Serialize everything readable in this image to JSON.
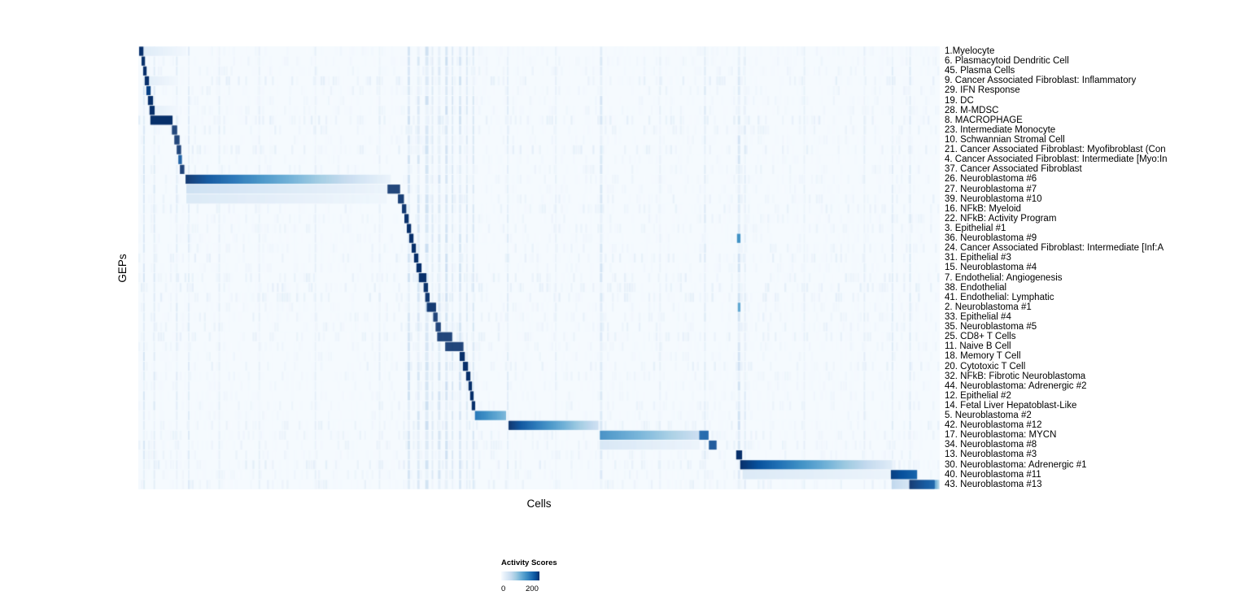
{
  "chart_data": {
    "type": "heatmap",
    "title": "",
    "xlabel": "Cells",
    "ylabel": "GEPs",
    "legend": {
      "title": "Activity Scores",
      "min": 0,
      "max": 200,
      "min_label": "0",
      "max_label": "200"
    },
    "background_value": 2,
    "colormap_stops": [
      [
        0,
        "#f7fbff"
      ],
      [
        0.13,
        "#deebf7"
      ],
      [
        0.26,
        "#c6dbef"
      ],
      [
        0.39,
        "#9ecae1"
      ],
      [
        0.52,
        "#6baed6"
      ],
      [
        0.65,
        "#4292c6"
      ],
      [
        0.78,
        "#2171b5"
      ],
      [
        0.9,
        "#08519c"
      ],
      [
        1,
        "#08306b"
      ]
    ],
    "column_streaks": [
      [
        0.006,
        0.002,
        28
      ],
      [
        0.019,
        0.002,
        22
      ],
      [
        0.047,
        0.002,
        20
      ],
      [
        0.062,
        0.002,
        22
      ],
      [
        0.1,
        0.002,
        16
      ],
      [
        0.15,
        0.002,
        14
      ],
      [
        0.22,
        0.002,
        14
      ],
      [
        0.3,
        0.002,
        16
      ],
      [
        0.336,
        0.003,
        32
      ],
      [
        0.348,
        0.003,
        28
      ],
      [
        0.358,
        0.004,
        36
      ],
      [
        0.366,
        0.002,
        24
      ],
      [
        0.374,
        0.003,
        30
      ],
      [
        0.383,
        0.003,
        34
      ],
      [
        0.391,
        0.002,
        26
      ],
      [
        0.4,
        0.003,
        30
      ],
      [
        0.409,
        0.002,
        26
      ],
      [
        0.417,
        0.002,
        28
      ],
      [
        0.46,
        0.002,
        20
      ],
      [
        0.52,
        0.002,
        14
      ],
      [
        0.576,
        0.003,
        28
      ],
      [
        0.65,
        0.002,
        14
      ],
      [
        0.706,
        0.002,
        22
      ],
      [
        0.748,
        0.003,
        32
      ],
      [
        0.756,
        0.002,
        22
      ],
      [
        0.83,
        0.002,
        14
      ],
      [
        0.905,
        0.002,
        16
      ],
      [
        0.94,
        0.002,
        20
      ],
      [
        0.962,
        0.002,
        22
      ]
    ],
    "rows": [
      {
        "label": "1.Myelocyte",
        "segments": [
          [
            0.001,
            0.007,
            200,
            200
          ],
          [
            0.007,
            0.06,
            25,
            6
          ]
        ]
      },
      {
        "label": "6. Plasmacytoid Dendritic Cell",
        "segments": [
          [
            0.004,
            0.009,
            200,
            200
          ]
        ]
      },
      {
        "label": "45. Plasma Cells",
        "segments": [
          [
            0.006,
            0.011,
            200,
            200
          ]
        ]
      },
      {
        "label": "9. Cancer Associated Fibroblast: Inflammatory",
        "segments": [
          [
            0.008,
            0.014,
            200,
            200
          ],
          [
            0.014,
            0.05,
            20,
            6
          ]
        ]
      },
      {
        "label": "29. IFN Response",
        "segments": [
          [
            0.01,
            0.016,
            190,
            190
          ]
        ]
      },
      {
        "label": "19. DC",
        "segments": [
          [
            0.012,
            0.019,
            200,
            200
          ]
        ]
      },
      {
        "label": "28. M-MDSC",
        "segments": [
          [
            0.014,
            0.021,
            200,
            200
          ],
          [
            0.021,
            0.05,
            18,
            6
          ]
        ]
      },
      {
        "label": "8. MACROPHAGE",
        "segments": [
          [
            0.015,
            0.043,
            200,
            200
          ]
        ]
      },
      {
        "label": "23. Intermediate Monocyte",
        "segments": [
          [
            0.042,
            0.049,
            200,
            200
          ]
        ]
      },
      {
        "label": "10. Schwannian Stromal Cell",
        "segments": [
          [
            0.045,
            0.052,
            200,
            200
          ]
        ]
      },
      {
        "label": "21. Cancer Associated Fibroblast: Myofibroblast (Con",
        "segments": [
          [
            0.048,
            0.054,
            200,
            200
          ]
        ]
      },
      {
        "label": "4. Cancer Associated Fibroblast: Intermediate [Myo:In",
        "segments": [
          [
            0.05,
            0.055,
            180,
            180
          ]
        ]
      },
      {
        "label": "37. Cancer Associated Fibroblast",
        "segments": [
          [
            0.052,
            0.058,
            200,
            200
          ]
        ]
      },
      {
        "label": "26. Neuroblastoma #6",
        "segments": [
          [
            0.059,
            0.315,
            200,
            12
          ]
        ]
      },
      {
        "label": "27. Neuroblastoma #7",
        "segments": [
          [
            0.06,
            0.31,
            45,
            12
          ],
          [
            0.311,
            0.327,
            200,
            200
          ]
        ]
      },
      {
        "label": "39. Neuroblastoma #10",
        "segments": [
          [
            0.06,
            0.31,
            30,
            8
          ],
          [
            0.324,
            0.332,
            200,
            200
          ]
        ]
      },
      {
        "label": "16. NFkB: Myeloid",
        "segments": [
          [
            0.329,
            0.335,
            200,
            200
          ]
        ]
      },
      {
        "label": "22. NFkB: Activity Program",
        "segments": [
          [
            0.332,
            0.338,
            200,
            200
          ]
        ]
      },
      {
        "label": "3. Epithelial #1",
        "segments": [
          [
            0.335,
            0.341,
            200,
            200
          ]
        ]
      },
      {
        "label": "36. Neuroblastoma #9",
        "segments": [
          [
            0.338,
            0.344,
            200,
            200
          ],
          [
            0.747,
            0.752,
            130,
            130
          ]
        ]
      },
      {
        "label": "24. Cancer Associated Fibroblast: Intermediate [Inf:A",
        "segments": [
          [
            0.341,
            0.347,
            200,
            200
          ]
        ]
      },
      {
        "label": "31. Epithelial #3",
        "segments": [
          [
            0.344,
            0.35,
            200,
            200
          ]
        ]
      },
      {
        "label": "15. Neuroblastoma #4",
        "segments": [
          [
            0.347,
            0.354,
            200,
            200
          ]
        ]
      },
      {
        "label": "7. Endothelial: Angiogenesis",
        "segments": [
          [
            0.35,
            0.36,
            200,
            200
          ]
        ]
      },
      {
        "label": "38. Endothelial",
        "segments": [
          [
            0.356,
            0.362,
            200,
            200
          ]
        ]
      },
      {
        "label": "41. Endothelial: Lymphatic",
        "segments": [
          [
            0.358,
            0.364,
            200,
            200
          ]
        ]
      },
      {
        "label": "2. Neuroblastoma #1",
        "segments": [
          [
            0.36,
            0.372,
            200,
            200
          ],
          [
            0.748,
            0.752,
            110,
            110
          ]
        ]
      },
      {
        "label": "33. Epithelial #4",
        "segments": [
          [
            0.368,
            0.374,
            200,
            200
          ]
        ]
      },
      {
        "label": "35. Neuroblastoma #5",
        "segments": [
          [
            0.371,
            0.378,
            200,
            200
          ]
        ]
      },
      {
        "label": "25. CD8+ T Cells",
        "segments": [
          [
            0.373,
            0.392,
            200,
            200
          ]
        ]
      },
      {
        "label": "11. Naive B Cell",
        "segments": [
          [
            0.383,
            0.406,
            200,
            200
          ]
        ]
      },
      {
        "label": "18. Memory T Cell",
        "segments": [
          [
            0.401,
            0.408,
            200,
            200
          ]
        ]
      },
      {
        "label": "20. Cytotoxic T Cell",
        "segments": [
          [
            0.405,
            0.412,
            200,
            200
          ]
        ]
      },
      {
        "label": "32. NFkB: Fibrotic Neuroblastoma",
        "segments": [
          [
            0.409,
            0.415,
            200,
            200
          ]
        ]
      },
      {
        "label": "44. Neuroblastoma: Adrenergic #2",
        "segments": [
          [
            0.412,
            0.417,
            200,
            200
          ]
        ]
      },
      {
        "label": "12. Epithelial #2",
        "segments": [
          [
            0.414,
            0.419,
            200,
            200
          ]
        ]
      },
      {
        "label": "14. Fetal Liver Hepatoblast-Like",
        "segments": [
          [
            0.416,
            0.421,
            200,
            200
          ]
        ]
      },
      {
        "label": "5. Neuroblastoma #2",
        "segments": [
          [
            0.42,
            0.459,
            150,
            95
          ]
        ]
      },
      {
        "label": "42. Neuroblastoma #12",
        "segments": [
          [
            0.462,
            0.574,
            200,
            45
          ]
        ]
      },
      {
        "label": "17. Neuroblastoma: MYCN",
        "segments": [
          [
            0.576,
            0.7,
            140,
            50
          ],
          [
            0.7,
            0.712,
            170,
            170
          ]
        ]
      },
      {
        "label": "34. Neuroblastoma #8",
        "segments": [
          [
            0.576,
            0.7,
            35,
            12
          ],
          [
            0.712,
            0.722,
            185,
            185
          ]
        ]
      },
      {
        "label": "13. Neuroblastoma #3",
        "segments": [
          [
            0.746,
            0.754,
            200,
            200
          ]
        ]
      },
      {
        "label": "30. Neuroblastoma: Adrenergic #1",
        "segments": [
          [
            0.751,
            0.94,
            200,
            25
          ]
        ]
      },
      {
        "label": "40. Neuroblastoma #11",
        "segments": [
          [
            0.754,
            0.938,
            28,
            12
          ],
          [
            0.939,
            0.972,
            190,
            165
          ]
        ]
      },
      {
        "label": "43. Neuroblastoma #13",
        "segments": [
          [
            0.94,
            0.962,
            55,
            35
          ],
          [
            0.962,
            0.994,
            200,
            170
          ],
          [
            0.994,
            1.0,
            110,
            70
          ]
        ]
      }
    ]
  }
}
